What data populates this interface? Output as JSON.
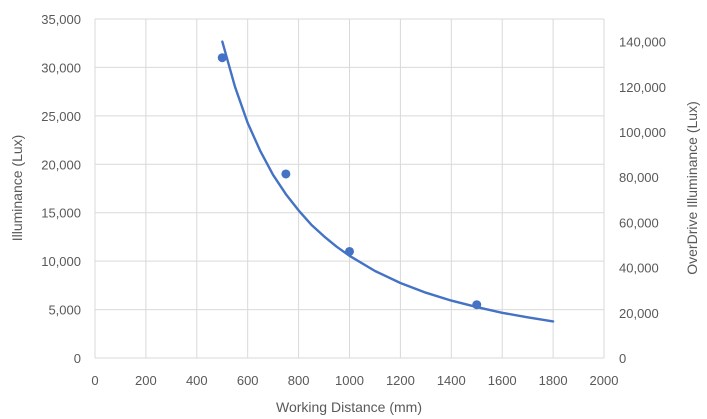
{
  "chart_data": {
    "type": "scatter",
    "title": "",
    "xlabel": "Working Distance (mm)",
    "ylabel": "Illuminance (Lux)",
    "y2label": "OverDrive Illuminance (Lux)",
    "xlim": [
      0,
      2000
    ],
    "ylim": [
      0,
      35000
    ],
    "y2lim": [
      0,
      150000
    ],
    "x_ticks": [
      0,
      200,
      400,
      600,
      800,
      1000,
      1200,
      1400,
      1600,
      1800,
      2000
    ],
    "x_tick_labels": [
      "0",
      "200",
      "400",
      "600",
      "800",
      "1000",
      "1200",
      "1400",
      "1600",
      "1800",
      "2000"
    ],
    "y_ticks": [
      0,
      5000,
      10000,
      15000,
      20000,
      25000,
      30000,
      35000
    ],
    "y_tick_labels": [
      "0",
      "5,000",
      "10,000",
      "15,000",
      "20,000",
      "25,000",
      "30,000",
      "35,000"
    ],
    "y2_ticks": [
      0,
      20000,
      40000,
      60000,
      80000,
      100000,
      120000,
      140000
    ],
    "y2_tick_labels": [
      "0",
      "20,000",
      "40,000",
      "60,000",
      "80,000",
      "100,000",
      "120,000",
      "140,000"
    ],
    "grid": true,
    "color": "#4472C4",
    "series": [
      {
        "kind": "points",
        "axis": "left",
        "x": [
          500,
          750,
          1000,
          1500
        ],
        "y": [
          31000,
          19000,
          11000,
          5500
        ]
      },
      {
        "kind": "curve",
        "axis": "right",
        "x": [
          500,
          550,
          600,
          650,
          700,
          750,
          800,
          850,
          900,
          950,
          1000,
          1100,
          1200,
          1300,
          1400,
          1500,
          1600,
          1700,
          1800
        ],
        "y": [
          140000,
          120000,
          104000,
          91500,
          81000,
          72500,
          65300,
          59000,
          53800,
          49200,
          45200,
          38500,
          33200,
          28900,
          25400,
          22500,
          20000,
          18000,
          16200
        ]
      }
    ]
  }
}
